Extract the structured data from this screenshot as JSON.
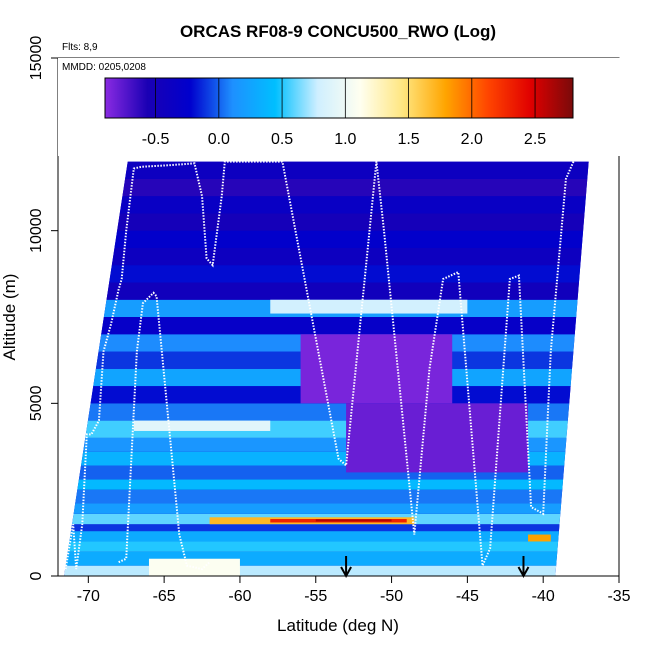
{
  "chart_data": {
    "type": "heatmap",
    "title": "ORCAS RF08-9 CONCU500_RWO (Log)",
    "subtitle_flights": "Flts: 8,9",
    "subtitle_dates": "MMDD: 0205,0208",
    "xlabel": "Latitude (deg N)",
    "ylabel": "Altitude (m)",
    "xlim": [
      -72,
      -35
    ],
    "ylim": [
      0,
      15000
    ],
    "x_ticks": [
      -70,
      -65,
      -60,
      -55,
      -50,
      -45,
      -40,
      -35
    ],
    "x_tick_labels": [
      "-70",
      "-65",
      "-60",
      "-55",
      "-50",
      "-45",
      "-40",
      "-35"
    ],
    "y_ticks": [
      0,
      5000,
      10000,
      15000
    ],
    "y_tick_labels": [
      "0",
      "5000",
      "10000",
      "15000"
    ],
    "colorbar": {
      "range": [
        -0.9,
        2.8
      ],
      "ticks": [
        -0.5,
        0.0,
        0.5,
        1.0,
        1.5,
        2.0,
        2.5
      ],
      "tick_labels": [
        "-0.5",
        "0.0",
        "0.5",
        "1.0",
        "1.5",
        "2.0",
        "2.5"
      ],
      "colors": [
        "#8a2be2",
        "#1a00b4",
        "#0000cd",
        "#1e90ff",
        "#00bfff",
        "#cfefff",
        "#fffff0",
        "#ffe680",
        "#ffa500",
        "#ff4500",
        "#e00000",
        "#7a0a0a"
      ]
    },
    "markers": [
      {
        "x": -53,
        "symbol": "arrow-down"
      },
      {
        "x": -41.3,
        "symbol": "arrow-down"
      }
    ],
    "flight_track": [
      [
        -71.5,
        200
      ],
      [
        -71,
        1500
      ],
      [
        -70.8,
        200
      ],
      [
        -70.4,
        1500
      ],
      [
        -70.1,
        4100
      ],
      [
        -69.8,
        4100
      ],
      [
        -69.3,
        4500
      ],
      [
        -69,
        6500
      ],
      [
        -68.5,
        7300
      ],
      [
        -68,
        8300
      ],
      [
        -67.8,
        8600
      ],
      [
        -67.5,
        10000
      ],
      [
        -67,
        11800
      ],
      [
        -66.5,
        11850
      ],
      [
        -64.5,
        11900
      ],
      [
        -63,
        11950
      ],
      [
        -62.5,
        11000
      ],
      [
        -62.2,
        9200
      ],
      [
        -61.8,
        9000
      ],
      [
        -61.2,
        11000
      ],
      [
        -61,
        12000
      ],
      [
        -58.5,
        12000
      ],
      [
        -57.2,
        12000
      ],
      [
        -53.5,
        3400
      ],
      [
        -53,
        3200
      ],
      [
        -51,
        12000
      ],
      [
        -50.5,
        10000
      ],
      [
        -48.5,
        1200
      ],
      [
        -47.5,
        6000
      ],
      [
        -46.6,
        8600
      ],
      [
        -45.6,
        8800
      ],
      [
        -44,
        300
      ],
      [
        -43.5,
        800
      ],
      [
        -42.2,
        8600
      ],
      [
        -41.6,
        8700
      ],
      [
        -40.8,
        2000
      ],
      [
        -40,
        1800
      ],
      [
        -39.5,
        6500
      ],
      [
        -38.5,
        11500
      ],
      [
        -38,
        12000
      ]
    ],
    "flight_track_2": [
      [
        -68,
        400
      ],
      [
        -67.5,
        500
      ],
      [
        -66.8,
        6500
      ],
      [
        -66.4,
        7900
      ],
      [
        -65.7,
        8200
      ],
      [
        -65.5,
        8100
      ],
      [
        -64,
        1200
      ],
      [
        -63.5,
        300
      ],
      [
        -62.5,
        200
      ],
      [
        -62,
        400
      ]
    ],
    "bands": [
      {
        "y0": 0,
        "y1": 300,
        "v": 0.75
      },
      {
        "y0": 300,
        "y1": 700,
        "v": 0.3
      },
      {
        "y0": 700,
        "y1": 1000,
        "v": 0.5
      },
      {
        "y0": 1000,
        "y1": 1300,
        "v": 0.3
      },
      {
        "y0": 1300,
        "y1": 1500,
        "v": -0.1
      },
      {
        "y0": 1500,
        "y1": 1800,
        "v": 0.6
      },
      {
        "y0": 1800,
        "y1": 2100,
        "v": 0.2
      },
      {
        "y0": 2100,
        "y1": 2500,
        "v": 0.05
      },
      {
        "y0": 2500,
        "y1": 2800,
        "v": 0.4
      },
      {
        "y0": 2800,
        "y1": 3200,
        "v": 0.0
      },
      {
        "y0": 3200,
        "y1": 3600,
        "v": 0.35
      },
      {
        "y0": 3600,
        "y1": 4000,
        "v": 0.15
      },
      {
        "y0": 4000,
        "y1": 4500,
        "v": 0.55
      },
      {
        "y0": 4500,
        "y1": 5000,
        "v": 0.05
      },
      {
        "y0": 5000,
        "y1": 5500,
        "v": -0.2
      },
      {
        "y0": 5500,
        "y1": 6000,
        "v": 0.25
      },
      {
        "y0": 6000,
        "y1": 6500,
        "v": -0.1
      },
      {
        "y0": 6500,
        "y1": 7000,
        "v": 0.1
      },
      {
        "y0": 7000,
        "y1": 7500,
        "v": -0.3
      },
      {
        "y0": 7500,
        "y1": 8000,
        "v": 0.2
      },
      {
        "y0": 8000,
        "y1": 8500,
        "v": -0.45
      },
      {
        "y0": 8500,
        "y1": 9000,
        "v": -0.2
      },
      {
        "y0": 9000,
        "y1": 9500,
        "v": -0.4
      },
      {
        "y0": 9500,
        "y1": 10000,
        "v": -0.25
      },
      {
        "y0": 10000,
        "y1": 10500,
        "v": -0.5
      },
      {
        "y0": 10500,
        "y1": 11000,
        "v": -0.35
      },
      {
        "y0": 11000,
        "y1": 11500,
        "v": -0.6
      },
      {
        "y0": 11500,
        "y1": 12000,
        "v": -0.4
      }
    ],
    "hotspots": [
      {
        "x0": -62,
        "x1": -48.5,
        "y0": 1500,
        "y1": 1700,
        "v": 1.7
      },
      {
        "x0": -58,
        "x1": -49,
        "y0": 1550,
        "y1": 1650,
        "v": 2.3
      },
      {
        "x0": -55,
        "x1": -50,
        "y0": 1580,
        "y1": 1640,
        "v": 2.6
      },
      {
        "x0": -66,
        "x1": -60,
        "y0": 0,
        "y1": 500,
        "v": 1.1
      },
      {
        "x0": -58,
        "x1": -45,
        "y0": 7600,
        "y1": 8000,
        "v": 0.8
      },
      {
        "x0": -67,
        "x1": -58,
        "y0": 4200,
        "y1": 4500,
        "v": 0.9
      },
      {
        "x0": -41,
        "x1": -39.5,
        "y0": 1000,
        "y1": 1200,
        "v": 1.8
      },
      {
        "x0": -56,
        "x1": -46,
        "y0": 5000,
        "y1": 7000,
        "v": -0.85
      },
      {
        "x0": -53,
        "x1": -41,
        "y0": 3000,
        "y1": 5000,
        "v": -0.8
      }
    ]
  }
}
